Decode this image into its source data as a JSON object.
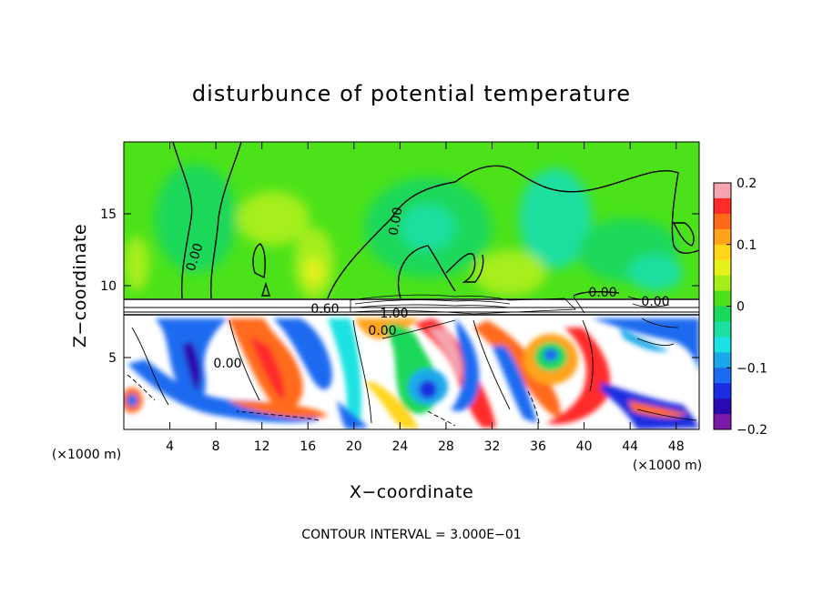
{
  "chart_data": {
    "type": "heatmap",
    "title": "disturbunce of potential temperature",
    "xlabel": "X−coordinate",
    "ylabel": "Z−coordinate",
    "x_unit": "(×1000 m)",
    "z_unit": "(×1000 m)",
    "xlim": [
      0,
      50
    ],
    "ylim": [
      0,
      20
    ],
    "x_ticks": [
      "4",
      "8",
      "12",
      "16",
      "20",
      "24",
      "28",
      "32",
      "36",
      "40",
      "44",
      "48"
    ],
    "y_ticks": [
      "5",
      "10",
      "15"
    ],
    "colorbar": {
      "range": [
        -0.2,
        0.2
      ],
      "tick_labels": [
        "0.2",
        "0.1",
        "0",
        "−0.1",
        "−0.2"
      ],
      "colors": [
        "#f4a5b0",
        "#ff2a2a",
        "#ff6a1a",
        "#ffa31a",
        "#ffd61a",
        "#e6f21a",
        "#a6ee1a",
        "#4be21a",
        "#1ad85a",
        "#1adfa0",
        "#1ae2e2",
        "#1aa8ea",
        "#1a6bf0",
        "#1a2de0",
        "#2a0ab0",
        "#7a1aa8"
      ]
    },
    "contour_labels": [
      "0.00",
      "0.00",
      "0.00",
      "0.00",
      "0.60",
      "1.00",
      "0.00",
      "0.00"
    ],
    "footnote": "CONTOUR INTERVAL = 3.000E−01"
  }
}
